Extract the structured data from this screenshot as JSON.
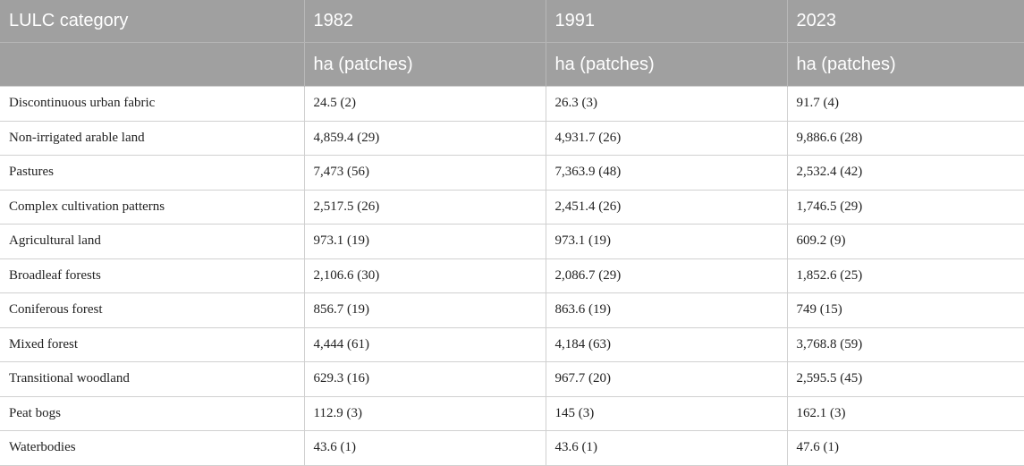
{
  "header": {
    "category_label": "LULC category",
    "years": [
      "1982",
      "1991",
      "2023"
    ],
    "unit": "ha (patches)"
  },
  "rows": [
    {
      "category": "Discontinuous urban fabric",
      "v1982": "24.5 (2)",
      "v1991": "26.3 (3)",
      "v2023": "91.7 (4)"
    },
    {
      "category": "Non-irrigated arable land",
      "v1982": "4,859.4 (29)",
      "v1991": "4,931.7 (26)",
      "v2023": "9,886.6 (28)"
    },
    {
      "category": "Pastures",
      "v1982": "7,473 (56)",
      "v1991": "7,363.9 (48)",
      "v2023": "2,532.4 (42)"
    },
    {
      "category": "Complex cultivation patterns",
      "v1982": "2,517.5 (26)",
      "v1991": "2,451.4 (26)",
      "v2023": "1,746.5 (29)"
    },
    {
      "category": "Agricultural land",
      "v1982": "973.1 (19)",
      "v1991": "973.1 (19)",
      "v2023": "609.2 (9)"
    },
    {
      "category": "Broadleaf forests",
      "v1982": "2,106.6 (30)",
      "v1991": "2,086.7 (29)",
      "v2023": "1,852.6 (25)"
    },
    {
      "category": "Coniferous forest",
      "v1982": "856.7 (19)",
      "v1991": "863.6 (19)",
      "v2023": "749 (15)"
    },
    {
      "category": "Mixed forest",
      "v1982": "4,444 (61)",
      "v1991": "4,184 (63)",
      "v2023": "3,768.8 (59)"
    },
    {
      "category": "Transitional woodland",
      "v1982": "629.3 (16)",
      "v1991": "967.7 (20)",
      "v2023": "2,595.5 (45)"
    },
    {
      "category": "Peat bogs",
      "v1982": "112.9 (3)",
      "v1991": "145 (3)",
      "v2023": "162.1 (3)"
    },
    {
      "category": "Waterbodies",
      "v1982": "43.6 (1)",
      "v1991": "43.6 (1)",
      "v2023": "47.6 (1)"
    }
  ]
}
